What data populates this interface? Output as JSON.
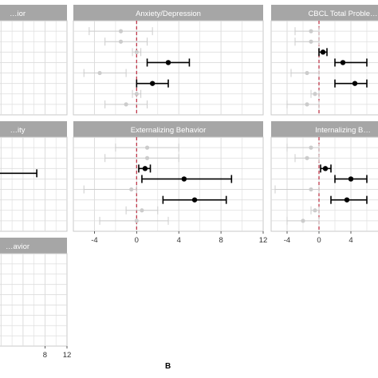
{
  "figure_label": "B",
  "colors": {
    "strip": "#a6a6a6",
    "grid": "#dddddd",
    "border": "#c8c8c8",
    "significant": "#000000",
    "nonsignificant": "#cccccc",
    "zero_line": "#c0394b"
  },
  "chart_data": [
    {
      "type": "forest",
      "title": "…ior",
      "xlim": [
        -6,
        12
      ],
      "x_ticks": [],
      "rows": [],
      "zero_line": false
    },
    {
      "type": "forest",
      "title": "Anxiety/Depression",
      "xlim": [
        -6,
        12
      ],
      "x_ticks": [],
      "zero_line": true,
      "rows": [
        {
          "est": -1.5,
          "lo": -4.5,
          "hi": 1.5,
          "significant": false
        },
        {
          "est": -1.5,
          "lo": -3.0,
          "hi": 1.0,
          "significant": false
        },
        {
          "est": 0.0,
          "lo": -0.4,
          "hi": 0.4,
          "significant": false
        },
        {
          "est": 3.0,
          "lo": 1.0,
          "hi": 5.0,
          "significant": true
        },
        {
          "est": -3.5,
          "lo": -5.0,
          "hi": -1.0,
          "significant": false
        },
        {
          "est": 1.5,
          "lo": 0.0,
          "hi": 3.0,
          "significant": true
        },
        {
          "est": 0.0,
          "lo": -0.4,
          "hi": 0.4,
          "significant": false
        },
        {
          "est": -1.0,
          "lo": -3.0,
          "hi": 1.0,
          "significant": false
        }
      ]
    },
    {
      "type": "forest",
      "title": "CBCL Total Proble…",
      "xlim": [
        -6,
        12
      ],
      "x_ticks": [],
      "zero_line": true,
      "rows": [
        {
          "est": -1.0,
          "lo": -3.0,
          "hi": 0.0,
          "significant": false
        },
        {
          "est": -1.0,
          "lo": -3.0,
          "hi": 0.0,
          "significant": false
        },
        {
          "est": 0.5,
          "lo": 0.0,
          "hi": 1.0,
          "significant": true
        },
        {
          "est": 3.0,
          "lo": 2.0,
          "hi": 6.0,
          "significant": true
        },
        {
          "est": -1.5,
          "lo": -3.5,
          "hi": 0.0,
          "significant": false
        },
        {
          "est": 4.5,
          "lo": 2.0,
          "hi": 6.0,
          "significant": true
        },
        {
          "est": -0.5,
          "lo": -1.0,
          "hi": 0.0,
          "significant": false
        },
        {
          "est": -1.5,
          "lo": -4.0,
          "hi": 0.0,
          "significant": false
        }
      ]
    },
    {
      "type": "forest",
      "title": "…ity",
      "xlim": [
        -6,
        12
      ],
      "x_ticks": [],
      "zero_line": false,
      "rows": [
        {
          "est": null,
          "lo": -6.0,
          "hi": 6.5,
          "significant": true
        }
      ]
    },
    {
      "type": "forest",
      "title": "Externalizing Behavior",
      "xlim": [
        -6,
        12
      ],
      "x_ticks": [
        "-4",
        "0",
        "4",
        "8",
        "12"
      ],
      "x_tick_values": [
        -4,
        0,
        4,
        8,
        12
      ],
      "zero_line": true,
      "rows": [
        {
          "est": 1.0,
          "lo": -2.0,
          "hi": 4.0,
          "significant": false
        },
        {
          "est": 1.0,
          "lo": -3.0,
          "hi": 4.0,
          "significant": false
        },
        {
          "est": 0.8,
          "lo": 0.2,
          "hi": 1.3,
          "significant": true
        },
        {
          "est": 4.5,
          "lo": 0.5,
          "hi": 9.0,
          "significant": true
        },
        {
          "est": -0.5,
          "lo": -5.0,
          "hi": 0.0,
          "significant": false
        },
        {
          "est": 5.5,
          "lo": 2.5,
          "hi": 8.5,
          "significant": true
        },
        {
          "est": 0.5,
          "lo": -1.0,
          "hi": 2.0,
          "significant": false
        },
        {
          "est": 0.0,
          "lo": -3.5,
          "hi": 3.0,
          "significant": false
        }
      ]
    },
    {
      "type": "forest",
      "title": "Internalizing B…",
      "xlim": [
        -6,
        12
      ],
      "x_ticks": [
        "-4",
        "0",
        "4"
      ],
      "x_tick_values": [
        -4,
        0,
        4
      ],
      "zero_line": true,
      "rows": [
        {
          "est": -1.0,
          "lo": -4.0,
          "hi": 0.0,
          "significant": false
        },
        {
          "est": -1.5,
          "lo": -3.0,
          "hi": 0.0,
          "significant": false
        },
        {
          "est": 0.8,
          "lo": 0.2,
          "hi": 1.5,
          "significant": true
        },
        {
          "est": 4.0,
          "lo": 2.0,
          "hi": 6.0,
          "significant": true
        },
        {
          "est": -1.0,
          "lo": -5.5,
          "hi": 0.0,
          "significant": false
        },
        {
          "est": 3.5,
          "lo": 1.5,
          "hi": 6.0,
          "significant": true
        },
        {
          "est": -0.5,
          "lo": -1.0,
          "hi": 0.0,
          "significant": false
        },
        {
          "est": -2.0,
          "lo": -4.0,
          "hi": 0.0,
          "significant": false
        }
      ]
    },
    {
      "type": "forest",
      "title": "…avior",
      "xlim": [
        -6,
        12
      ],
      "x_ticks": [
        "8",
        "12"
      ],
      "x_tick_values": [
        8,
        12
      ],
      "zero_line": false,
      "rows": []
    }
  ]
}
